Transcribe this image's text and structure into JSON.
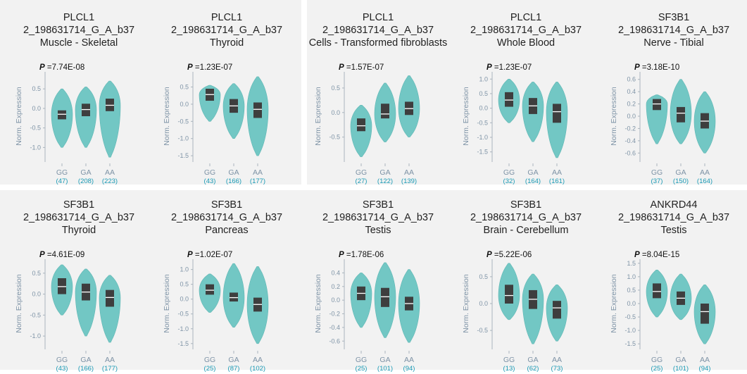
{
  "chart_data": [
    {
      "type": "violin",
      "title_lines": [
        "PLCL1",
        "2_198631714_G_A_b37",
        "Muscle - Skeletal"
      ],
      "p_value": "=7.74E-08",
      "ylabel": "Norm. Expression",
      "yticks": [
        "0.5",
        "0.0",
        "-0.5",
        "-1.0"
      ],
      "ylim": [
        -1.3,
        0.9
      ],
      "colors": {
        "violin": "#72c7c4",
        "box": "#3e3e3e",
        "count": "#1a9ab5",
        "axis": "#7e93a6"
      },
      "groups": [
        {
          "genotype": "GG",
          "count": "(47)",
          "min": -1.0,
          "max": 0.5,
          "q1": -0.28,
          "median": -0.15,
          "q3": -0.05
        },
        {
          "genotype": "GA",
          "count": "(208)",
          "min": -1.0,
          "max": 0.55,
          "q1": -0.2,
          "median": -0.03,
          "q3": 0.12
        },
        {
          "genotype": "AA",
          "count": "(223)",
          "min": -1.25,
          "max": 0.7,
          "q1": -0.07,
          "median": 0.08,
          "q3": 0.25
        }
      ]
    },
    {
      "type": "violin",
      "title_lines": [
        "PLCL1",
        "2_198631714_G_A_b37",
        "Thyroid"
      ],
      "p_value": "=1.23E-07",
      "ylabel": "Norm. Expression",
      "yticks": [
        "0.5",
        "0.0",
        "-0.5",
        "-1.0",
        "-1.5"
      ],
      "ylim": [
        -1.6,
        0.9
      ],
      "groups": [
        {
          "genotype": "GG",
          "count": "(43)",
          "min": -0.5,
          "max": 0.55,
          "q1": 0.1,
          "median": 0.28,
          "q3": 0.45
        },
        {
          "genotype": "GA",
          "count": "(166)",
          "min": -1.0,
          "max": 0.6,
          "q1": -0.25,
          "median": -0.05,
          "q3": 0.15
        },
        {
          "genotype": "AA",
          "count": "(177)",
          "min": -1.5,
          "max": 0.8,
          "q1": -0.4,
          "median": -0.15,
          "q3": 0.05
        }
      ]
    },
    {
      "type": "violin",
      "title_lines": [
        "PLCL1",
        "2_198631714_G_A_b37",
        "Cells - Transformed fibroblasts"
      ],
      "p_value": "=1.57E-07",
      "ylabel": "Norm. Expression",
      "yticks": [
        "0.5",
        "0.0",
        "-0.5"
      ],
      "ylim": [
        -0.95,
        0.8
      ],
      "groups": [
        {
          "genotype": "GG",
          "count": "(27)",
          "min": -0.9,
          "max": 0.15,
          "q1": -0.38,
          "median": -0.27,
          "q3": -0.12
        },
        {
          "genotype": "GA",
          "count": "(122)",
          "min": -0.6,
          "max": 0.6,
          "q1": -0.12,
          "median": -0.03,
          "q3": 0.18
        },
        {
          "genotype": "AA",
          "count": "(139)",
          "min": -0.5,
          "max": 0.75,
          "q1": -0.05,
          "median": 0.08,
          "q3": 0.22
        }
      ]
    },
    {
      "type": "violin",
      "title_lines": [
        "PLCL1",
        "2_198631714_G_A_b37",
        "Whole Blood"
      ],
      "p_value": "=1.23E-07",
      "ylabel": "Norm. Expression",
      "yticks": [
        "1.0",
        "0.5",
        "0.0",
        "-0.5",
        "-1.0",
        "-1.5"
      ],
      "ylim": [
        -1.75,
        1.2
      ],
      "groups": [
        {
          "genotype": "GG",
          "count": "(32)",
          "min": -0.5,
          "max": 1.0,
          "q1": 0.05,
          "median": 0.28,
          "q3": 0.55
        },
        {
          "genotype": "GA",
          "count": "(164)",
          "min": -1.15,
          "max": 0.9,
          "q1": -0.2,
          "median": 0.08,
          "q3": 0.35
        },
        {
          "genotype": "AA",
          "count": "(161)",
          "min": -1.7,
          "max": 0.9,
          "q1": -0.5,
          "median": -0.12,
          "q3": 0.15
        }
      ]
    },
    {
      "type": "violin",
      "title_lines": [
        "SF3B1",
        "2_198631714_G_A_b37",
        "Nerve - Tibial"
      ],
      "p_value": "=3.18E-10",
      "ylabel": "Norm. Expression",
      "yticks": [
        "0.6",
        "0.4",
        "0.2",
        "0.0",
        "-0.2",
        "-0.4",
        "-0.6"
      ],
      "ylim": [
        -0.7,
        0.7
      ],
      "groups": [
        {
          "genotype": "GG",
          "count": "(37)",
          "min": -0.45,
          "max": 0.35,
          "q1": 0.1,
          "median": 0.2,
          "q3": 0.28
        },
        {
          "genotype": "GA",
          "count": "(150)",
          "min": -0.45,
          "max": 0.6,
          "q1": -0.1,
          "median": 0.05,
          "q3": 0.15
        },
        {
          "genotype": "AA",
          "count": "(164)",
          "min": -0.6,
          "max": 0.4,
          "q1": -0.2,
          "median": -0.08,
          "q3": 0.05
        }
      ]
    },
    {
      "type": "violin",
      "title_lines": [
        "SF3B1",
        "2_198631714_G_A_b37",
        "Thyroid"
      ],
      "p_value": "=4.61E-09",
      "ylabel": "Norm. Expression",
      "yticks": [
        "0.5",
        "0.0",
        "-0.5",
        "-1.0"
      ],
      "ylim": [
        -1.25,
        0.8
      ],
      "groups": [
        {
          "genotype": "GG",
          "count": "(43)",
          "min": -0.5,
          "max": 0.7,
          "q1": 0.0,
          "median": 0.18,
          "q3": 0.38
        },
        {
          "genotype": "GA",
          "count": "(166)",
          "min": -1.0,
          "max": 0.6,
          "q1": -0.15,
          "median": 0.05,
          "q3": 0.25
        },
        {
          "genotype": "AA",
          "count": "(177)",
          "min": -1.15,
          "max": 0.45,
          "q1": -0.3,
          "median": -0.08,
          "q3": 0.1
        }
      ]
    },
    {
      "type": "violin",
      "title_lines": [
        "SF3B1",
        "2_198631714_G_A_b37",
        "Pancreas"
      ],
      "p_value": "=1.02E-07",
      "ylabel": "Norm. Expression",
      "yticks": [
        "1.0",
        "0.5",
        "0.0",
        "-0.5",
        "-1.0",
        "-1.5"
      ],
      "ylim": [
        -1.6,
        1.3
      ],
      "groups": [
        {
          "genotype": "GG",
          "count": "(25)",
          "min": -0.45,
          "max": 0.85,
          "q1": 0.15,
          "median": 0.3,
          "q3": 0.5
        },
        {
          "genotype": "GA",
          "count": "(87)",
          "min": -0.95,
          "max": 1.2,
          "q1": -0.08,
          "median": 0.05,
          "q3": 0.22
        },
        {
          "genotype": "AA",
          "count": "(102)",
          "min": -1.5,
          "max": 1.1,
          "q1": -0.42,
          "median": -0.18,
          "q3": 0.05
        }
      ]
    },
    {
      "type": "violin",
      "title_lines": [
        "SF3B1",
        "2_198631714_G_A_b37",
        "Testis"
      ],
      "p_value": "=1.78E-06",
      "ylabel": "Norm. Expression",
      "yticks": [
        "0.4",
        "0.2",
        "0.0",
        "-0.2",
        "-0.4",
        "-0.6"
      ],
      "ylim": [
        -0.68,
        0.58
      ],
      "groups": [
        {
          "genotype": "GG",
          "count": "(25)",
          "min": -0.4,
          "max": 0.4,
          "q1": 0.0,
          "median": 0.1,
          "q3": 0.2
        },
        {
          "genotype": "GA",
          "count": "(101)",
          "min": -0.55,
          "max": 0.55,
          "q1": -0.1,
          "median": 0.05,
          "q3": 0.18
        },
        {
          "genotype": "AA",
          "count": "(94)",
          "min": -0.62,
          "max": 0.45,
          "q1": -0.15,
          "median": -0.05,
          "q3": 0.05
        }
      ]
    },
    {
      "type": "violin",
      "title_lines": [
        "SF3B1",
        "2_198631714_G_A_b37",
        "Brain - Cerebellum"
      ],
      "p_value": "=5.22E-06",
      "ylabel": "Norm. Expression",
      "yticks": [
        "0.5",
        "0.0",
        "-0.5"
      ],
      "ylim": [
        -0.8,
        0.8
      ],
      "groups": [
        {
          "genotype": "GG",
          "count": "(13)",
          "min": -0.3,
          "max": 0.75,
          "q1": 0.0,
          "median": 0.15,
          "q3": 0.35
        },
        {
          "genotype": "GA",
          "count": "(62)",
          "min": -0.75,
          "max": 0.55,
          "q1": -0.1,
          "median": 0.08,
          "q3": 0.25
        },
        {
          "genotype": "AA",
          "count": "(73)",
          "min": -0.7,
          "max": 0.35,
          "q1": -0.28,
          "median": -0.08,
          "q3": 0.05
        }
      ]
    },
    {
      "type": "violin",
      "title_lines": [
        "ANKRD44",
        "2_198631714_G_A_b37",
        "Testis"
      ],
      "p_value": "=8.04E-15",
      "ylabel": "Norm. Expression",
      "yticks": [
        "1.5",
        "1.0",
        "0.5",
        "0.0",
        "-0.5",
        "-1.0",
        "-1.5"
      ],
      "ylim": [
        -1.6,
        1.6
      ],
      "groups": [
        {
          "genotype": "GG",
          "count": "(25)",
          "min": -0.5,
          "max": 1.25,
          "q1": 0.2,
          "median": 0.45,
          "q3": 0.75
        },
        {
          "genotype": "GA",
          "count": "(101)",
          "min": -0.6,
          "max": 1.1,
          "q1": -0.05,
          "median": 0.2,
          "q3": 0.45
        },
        {
          "genotype": "AA",
          "count": "(94)",
          "min": -1.5,
          "max": 0.7,
          "q1": -0.75,
          "median": -0.3,
          "q3": 0.0
        }
      ]
    }
  ]
}
